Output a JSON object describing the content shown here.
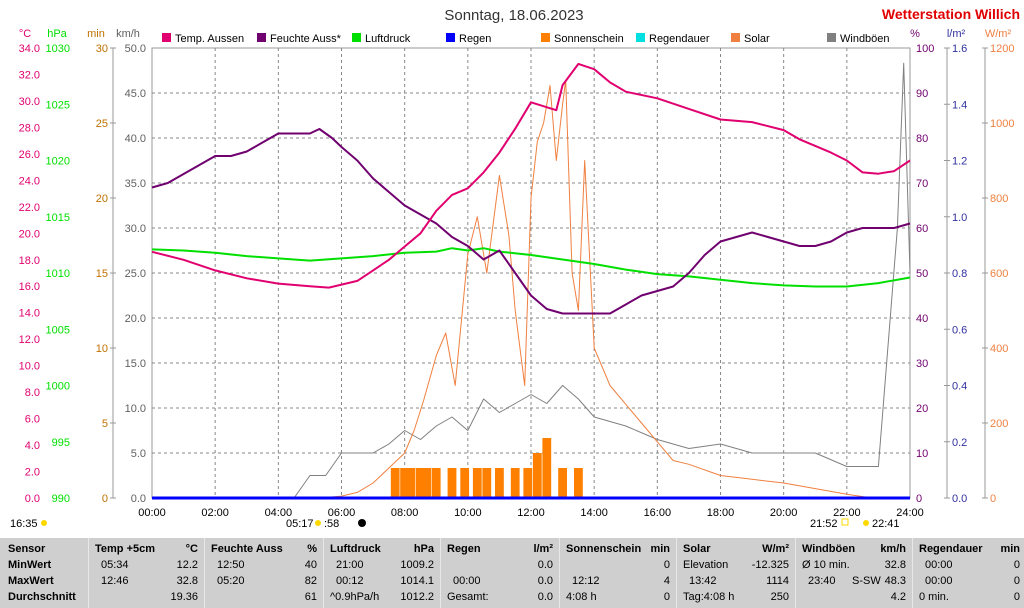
{
  "header": {
    "title": "Sonntag, 18.06.2023",
    "station": "Wetterstation Willich"
  },
  "units_left": [
    "°C",
    "hPa",
    "min",
    "km/h"
  ],
  "units_right": [
    "%",
    "l/m²",
    "W/m²"
  ],
  "colors": {
    "temp": "#e0006f",
    "humidity": "#70006f",
    "pressure": "#00e000",
    "rain": "#0000ff",
    "sunshine": "#ff8000",
    "rain_duration": "#00e0e0",
    "solar": "#f08040",
    "gusts": "#808080"
  },
  "legend": [
    {
      "label": "Temp. Aussen",
      "color": "#e0006f"
    },
    {
      "label": "Feuchte Auss*",
      "color": "#70006f"
    },
    {
      "label": "Luftdruck",
      "color": "#00e000"
    },
    {
      "label": "Regen",
      "color": "#0000ff"
    },
    {
      "label": "Sonnenschein",
      "color": "#ff8000"
    },
    {
      "label": "Regendauer",
      "color": "#00e0e0"
    },
    {
      "label": "Solar",
      "color": "#f08040"
    },
    {
      "label": "Windböen",
      "color": "#808080"
    }
  ],
  "sun_times": {
    "day_start": "16:35",
    "sunrise": "05:17",
    "sunrise_b": ":58",
    "sunset": "21:52",
    "day_end": "22:41"
  },
  "chart_data": {
    "type": "line",
    "x_ticks": [
      "00:00",
      "02:00",
      "04:00",
      "06:00",
      "08:00",
      "10:00",
      "12:00",
      "14:00",
      "16:00",
      "18:00",
      "20:00",
      "22:00",
      "24:00"
    ],
    "axes": {
      "temp": {
        "ylim": [
          0,
          34
        ],
        "ticks": [
          "0.0",
          "2.0",
          "4.0",
          "6.0",
          "8.0",
          "10.0",
          "12.0",
          "14.0",
          "16.0",
          "18.0",
          "20.0",
          "22.0",
          "24.0",
          "26.0",
          "28.0",
          "30.0",
          "32.0",
          "34.0"
        ]
      },
      "pressure": {
        "ylim": [
          990,
          1030
        ],
        "ticks": [
          "990",
          "995",
          "1000",
          "1005",
          "1010",
          "1015",
          "1020",
          "1025",
          "1030"
        ]
      },
      "sunshine": {
        "ylim": [
          0,
          30
        ],
        "ticks": [
          "0",
          "5",
          "10",
          "15",
          "20",
          "25",
          "30"
        ]
      },
      "wind": {
        "ylim": [
          0,
          50
        ],
        "ticks": [
          "0.0",
          "5.0",
          "10.0",
          "15.0",
          "20.0",
          "25.0",
          "30.0",
          "35.0",
          "40.0",
          "45.0",
          "50.0"
        ]
      },
      "humidity": {
        "ylim": [
          0,
          100
        ],
        "ticks": [
          "0",
          "10",
          "20",
          "30",
          "40",
          "50",
          "60",
          "70",
          "80",
          "90",
          "100"
        ]
      },
      "rain": {
        "ylim": [
          0,
          1.6
        ],
        "ticks": [
          "0.0",
          "0.2",
          "0.4",
          "0.6",
          "0.8",
          "1.0",
          "1.2",
          "1.4",
          "1.6"
        ]
      },
      "solar": {
        "ylim": [
          0,
          1200
        ],
        "ticks": [
          "0",
          "200",
          "400",
          "600",
          "800",
          "1000",
          "1200"
        ]
      }
    },
    "series": [
      {
        "name": "Temp. Aussen",
        "axis": "temp",
        "x_hours": [
          0,
          1,
          2,
          3,
          4,
          5,
          5.6,
          6.5,
          7,
          7.5,
          8,
          8.5,
          9,
          9.5,
          10,
          10.5,
          11,
          11.5,
          12,
          12.8,
          13,
          13.5,
          14,
          14.5,
          15,
          16,
          17,
          18,
          19,
          20,
          20.5,
          21,
          21.5,
          22,
          22.5,
          23,
          23.5,
          24
        ],
        "values": [
          18.6,
          18.0,
          17.2,
          16.6,
          16.2,
          16.0,
          15.9,
          16.4,
          17.2,
          18.0,
          19.0,
          20.0,
          21.7,
          22.9,
          23.4,
          24.6,
          26.1,
          27.9,
          29.9,
          29.3,
          31.2,
          32.8,
          32.4,
          31.4,
          30.7,
          30.2,
          29.4,
          28.6,
          28.4,
          27.8,
          27.1,
          26.6,
          26.1,
          25.5,
          24.6,
          24.5,
          24.7,
          25.5
        ]
      },
      {
        "name": "Feuchte Auss*",
        "axis": "humidity",
        "x_hours": [
          0,
          0.5,
          1,
          1.5,
          2,
          2.5,
          3,
          3.5,
          4,
          4.5,
          5,
          5.3,
          5.7,
          6,
          6.5,
          7,
          7.5,
          8,
          8.5,
          9,
          9.5,
          10,
          10.5,
          11,
          11.5,
          12,
          12.5,
          13,
          13.5,
          14,
          14.5,
          15,
          15.5,
          16,
          16.5,
          17,
          17.5,
          18,
          18.5,
          19,
          19.5,
          20,
          20.5,
          21,
          21.5,
          22,
          22.5,
          23,
          23.5,
          24
        ],
        "values": [
          69,
          70,
          72,
          74,
          76,
          76,
          77,
          79,
          81,
          81,
          81,
          82,
          80,
          78,
          75,
          71,
          68,
          65,
          63,
          61,
          58,
          56,
          53,
          55,
          50,
          45,
          42,
          41,
          41,
          41,
          41,
          43,
          45,
          46,
          47,
          50,
          54,
          57,
          58,
          59,
          58,
          57,
          56,
          56,
          57,
          59,
          60,
          60,
          60,
          61
        ]
      },
      {
        "name": "Luftdruck",
        "axis": "pressure",
        "x_hours": [
          0,
          1,
          2,
          3,
          4,
          5,
          6,
          7,
          8,
          9,
          9.5,
          10,
          10.5,
          11,
          12,
          13,
          14,
          15,
          16,
          17,
          18,
          19,
          20,
          21,
          22,
          23,
          24
        ],
        "values": [
          1012.1,
          1012.0,
          1011.8,
          1011.5,
          1011.3,
          1011.1,
          1011.3,
          1011.5,
          1011.8,
          1011.9,
          1012.2,
          1012.0,
          1012.2,
          1011.9,
          1011.6,
          1011.2,
          1010.8,
          1010.3,
          1009.9,
          1009.7,
          1009.4,
          1009.1,
          1008.9,
          1008.8,
          1008.8,
          1009.1,
          1009.6
        ]
      },
      {
        "name": "Solar",
        "axis": "solar",
        "x_hours": [
          5.3,
          6,
          6.5,
          7,
          7.5,
          8,
          8.3,
          8.6,
          9,
          9.3,
          9.6,
          10,
          10.3,
          10.6,
          11,
          11.3,
          11.5,
          11.8,
          12,
          12.2,
          12.4,
          12.6,
          12.8,
          13,
          13.1,
          13.3,
          13.5,
          13.7,
          14,
          14.5,
          15,
          15.5,
          16,
          16.5,
          17,
          18,
          19,
          20,
          21,
          22,
          22.8,
          23,
          23.5,
          24
        ],
        "values": [
          0,
          5,
          15,
          40,
          80,
          120,
          180,
          260,
          380,
          440,
          300,
          650,
          750,
          600,
          860,
          700,
          500,
          300,
          800,
          950,
          1000,
          1100,
          900,
          1050,
          1114,
          600,
          500,
          900,
          400,
          300,
          250,
          200,
          150,
          100,
          90,
          60,
          50,
          40,
          25,
          10,
          0,
          0,
          0,
          0
        ]
      },
      {
        "name": "Windböen",
        "axis": "wind",
        "x_hours": [
          0,
          4.5,
          5,
          5.5,
          6,
          6.5,
          7,
          7.5,
          8,
          8.5,
          9,
          9.5,
          10,
          10.5,
          11,
          11.5,
          12,
          12.5,
          13,
          13.5,
          14,
          15,
          16,
          17,
          18,
          19,
          20,
          21,
          22,
          23,
          23.6,
          23.8,
          24
        ],
        "values": [
          0,
          0,
          2.5,
          2.5,
          5.0,
          5.0,
          5.0,
          6.0,
          7.5,
          6.5,
          8.0,
          9.0,
          7.5,
          11.0,
          9.5,
          10.5,
          11.5,
          10.5,
          12.5,
          11.0,
          9.0,
          8.0,
          6.5,
          5.5,
          6.0,
          5.0,
          5.0,
          5.0,
          3.5,
          3.5,
          30.0,
          48.3,
          25.0
        ]
      },
      {
        "name": "Sonnenschein",
        "axis": "sunshine",
        "type": "bar",
        "x_hours": [
          7.7,
          8.0,
          8.2,
          8.5,
          8.7,
          9.0,
          9.5,
          9.9,
          10.3,
          10.6,
          11.0,
          11.5,
          11.9,
          12.2,
          12.5,
          13.0,
          13.5
        ],
        "values": [
          2,
          2,
          2,
          2,
          2,
          2,
          2,
          2,
          2,
          2,
          2,
          2,
          2,
          3,
          4,
          2,
          2
        ]
      },
      {
        "name": "Regen",
        "axis": "rain",
        "x_hours": [
          0,
          24
        ],
        "values": [
          0,
          0
        ]
      }
    ]
  },
  "table": {
    "sensor": {
      "title": "Sensor",
      "rows": [
        "MinWert",
        "MaxWert",
        "Durchschnitt"
      ]
    },
    "temp": {
      "title": "Temp +5cm",
      "unit": "°C",
      "min_time": "05:34",
      "min": "12.2",
      "max_time": "12:46",
      "max": "32.8",
      "avg": "19.36"
    },
    "humidity": {
      "title": "Feuchte Auss",
      "unit": "%",
      "min_time": "12:50",
      "min": "40",
      "max_time": "05:20",
      "max": "82",
      "avg": "61"
    },
    "pressure": {
      "title": "Luftdruck",
      "unit": "hPa",
      "min_time": "21:00",
      "min": "1009.2",
      "max_time": "00:12",
      "max": "1014.1",
      "trend": "^0.9hPa/h",
      "avg": "1012.2"
    },
    "rain": {
      "title": "Regen",
      "unit": "l/m²",
      "r1": "0.0",
      "r2_time": "00:00",
      "r2": "0.0",
      "total_label": "Gesamt:",
      "total": "0.0"
    },
    "sunshine": {
      "title": "Sonnenschein",
      "unit": "min",
      "r1": "0",
      "r2_time": "12:12",
      "r2": "4",
      "total_time": "4:08 h",
      "total": "0"
    },
    "solar": {
      "title": "Solar",
      "unit": "W/m²",
      "elev_label": "Elevation",
      "elev": "-12.325",
      "max_time": "13:42",
      "max": "1114",
      "day_label": "Tag:4:08 h",
      "avg": "250"
    },
    "gusts": {
      "title": "Windböen",
      "unit": "km/h",
      "r1_label": "Ø 10 min.",
      "r1": "32.8",
      "r2_time": "23:40",
      "r2_dir": "S-SW",
      "r2": "48.3",
      "avg": "4.2"
    },
    "rain_duration": {
      "title": "Regendauer",
      "unit": "min",
      "r1_time": "00:00",
      "r1": "0",
      "r2_time": "00:00",
      "r2": "0",
      "r3": "0 min.",
      "r3_val": "0"
    }
  }
}
